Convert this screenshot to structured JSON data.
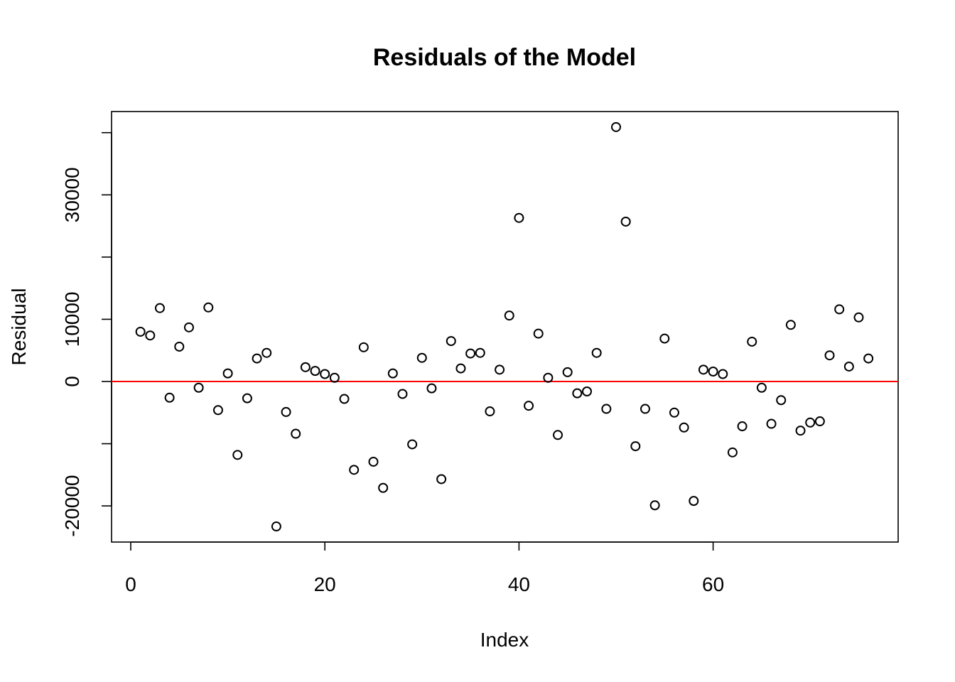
{
  "chart_data": {
    "type": "scatter",
    "title": "Residuals of the Model",
    "xlabel": "Index",
    "ylabel": "Residual",
    "xlim": [
      0,
      76
    ],
    "ylim": [
      -25000,
      40000
    ],
    "xticks": [
      0,
      20,
      40,
      60
    ],
    "yticks": [
      -20000,
      -10000,
      0,
      10000,
      20000,
      30000,
      40000
    ],
    "yticklabels": [
      "-20000",
      "",
      "0",
      "10000",
      "",
      "30000",
      ""
    ],
    "xticklabels": [
      "0",
      "20",
      "40",
      "60"
    ],
    "reference_line": {
      "y": 0,
      "color": "#ff0000"
    },
    "grid": false,
    "x": [
      1,
      2,
      3,
      4,
      5,
      6,
      7,
      8,
      9,
      10,
      11,
      12,
      13,
      14,
      15,
      16,
      17,
      18,
      19,
      20,
      21,
      22,
      23,
      24,
      25,
      26,
      27,
      28,
      29,
      30,
      31,
      32,
      33,
      34,
      35,
      36,
      37,
      38,
      39,
      40,
      41,
      42,
      43,
      44,
      45,
      46,
      47,
      48,
      49,
      50,
      51,
      52,
      53,
      54,
      55,
      56,
      57,
      58,
      59,
      60,
      61,
      62,
      63,
      64,
      65,
      66,
      67,
      68,
      69,
      70,
      71,
      72,
      73,
      74,
      75,
      76
    ],
    "y": [
      8000,
      7400,
      11800,
      -2600,
      5600,
      8700,
      -1000,
      11900,
      -4600,
      1300,
      -11800,
      -2700,
      3700,
      4600,
      -23300,
      -4900,
      -8400,
      2300,
      1700,
      1200,
      600,
      -2800,
      -14200,
      5500,
      -12900,
      -17100,
      1300,
      -2000,
      -10100,
      3800,
      -1100,
      -15700,
      6500,
      2100,
      4500,
      4600,
      -4800,
      1900,
      10600,
      26300,
      -3900,
      7700,
      600,
      -8600,
      1500,
      -1900,
      -1600,
      4600,
      -4400,
      40900,
      25700,
      -10400,
      -4400,
      -19900,
      6900,
      -5000,
      -7400,
      -19200,
      1900,
      1600,
      1200,
      -11400,
      -7200,
      6400,
      -1000,
      -6800,
      -3000,
      9100,
      -7900,
      -6600,
      -6400,
      4200,
      11600,
      2400,
      10300,
      3700
    ]
  }
}
